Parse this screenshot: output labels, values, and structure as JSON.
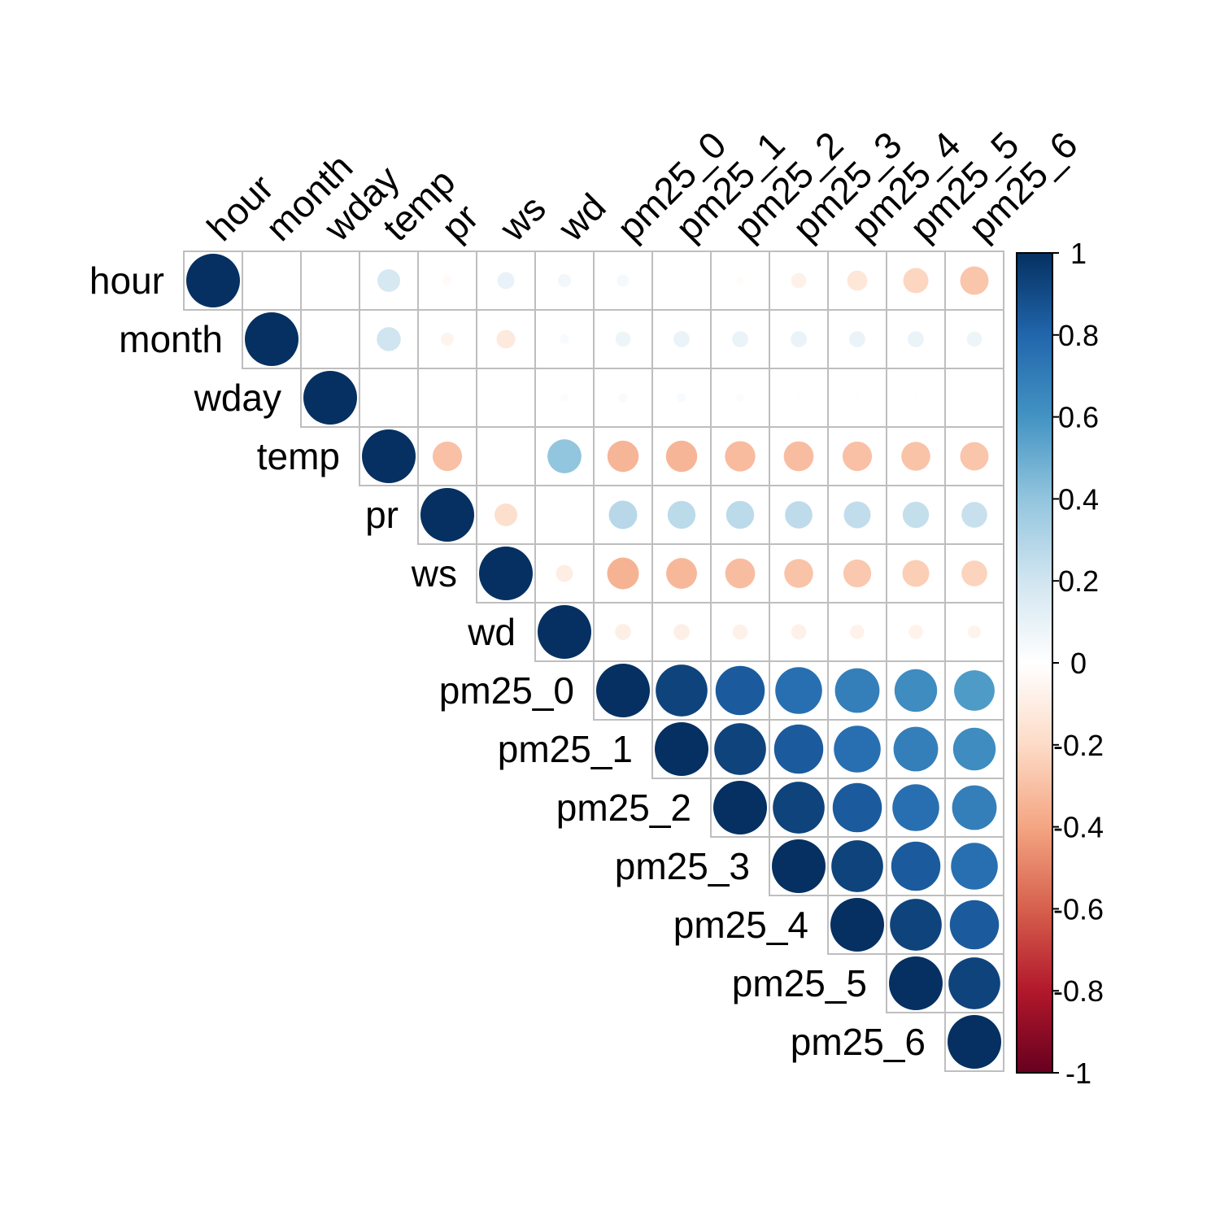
{
  "chart_data": {
    "type": "heatmap",
    "variables": [
      "hour",
      "month",
      "wday",
      "temp",
      "pr",
      "ws",
      "wd",
      "pm25_0",
      "pm25_1",
      "pm25_2",
      "pm25_3",
      "pm25_4",
      "pm25_5",
      "pm25_6"
    ],
    "matrix_layout": "upper-triangle",
    "marker": "circle",
    "correlation": [
      [
        1,
        0,
        0,
        0.18,
        -0.03,
        0.1,
        0.06,
        0.05,
        0.01,
        -0.02,
        -0.08,
        -0.14,
        -0.22,
        -0.28
      ],
      [
        null,
        1,
        0,
        0.2,
        -0.06,
        -0.12,
        0.03,
        0.08,
        0.09,
        0.09,
        0.09,
        0.09,
        0.09,
        0.08
      ],
      [
        null,
        null,
        1,
        0,
        0,
        0,
        -0.02,
        0.03,
        0.03,
        0.02,
        0.01,
        0.01,
        0.01,
        0
      ],
      [
        null,
        null,
        null,
        1,
        -0.3,
        0,
        0.4,
        -0.34,
        -0.34,
        -0.32,
        -0.31,
        -0.3,
        -0.29,
        -0.28
      ],
      [
        null,
        null,
        null,
        null,
        1,
        -0.18,
        0,
        0.28,
        0.27,
        0.27,
        0.26,
        0.25,
        0.24,
        0.23
      ],
      [
        null,
        null,
        null,
        null,
        null,
        1,
        -0.1,
        -0.35,
        -0.33,
        -0.31,
        -0.29,
        -0.27,
        -0.25,
        -0.23
      ],
      [
        null,
        null,
        null,
        null,
        null,
        null,
        1,
        -0.09,
        -0.09,
        -0.08,
        -0.08,
        -0.07,
        -0.07,
        -0.06
      ],
      [
        null,
        null,
        null,
        null,
        null,
        null,
        null,
        1,
        0.93,
        0.84,
        0.76,
        0.69,
        0.63,
        0.57
      ],
      [
        null,
        null,
        null,
        null,
        null,
        null,
        null,
        null,
        1,
        0.93,
        0.84,
        0.76,
        0.69,
        0.63
      ],
      [
        null,
        null,
        null,
        null,
        null,
        null,
        null,
        null,
        null,
        1,
        0.93,
        0.84,
        0.76,
        0.69
      ],
      [
        null,
        null,
        null,
        null,
        null,
        null,
        null,
        null,
        null,
        null,
        1,
        0.93,
        0.84,
        0.76
      ],
      [
        null,
        null,
        null,
        null,
        null,
        null,
        null,
        null,
        null,
        null,
        null,
        1,
        0.93,
        0.84
      ],
      [
        null,
        null,
        null,
        null,
        null,
        null,
        null,
        null,
        null,
        null,
        null,
        null,
        1,
        0.93
      ],
      [
        null,
        null,
        null,
        null,
        null,
        null,
        null,
        null,
        null,
        null,
        null,
        null,
        null,
        1
      ]
    ],
    "color_scale": {
      "range": [
        -1,
        1
      ],
      "ticks": [
        "1",
        "0.8",
        "0.6",
        "0.4",
        "0.2",
        "0",
        "-0.2",
        "-0.4",
        "-0.6",
        "-0.8",
        "-1"
      ],
      "tick_values": [
        1,
        0.8,
        0.6,
        0.4,
        0.2,
        0,
        -0.2,
        -0.4,
        -0.6,
        -0.8,
        -1
      ],
      "stops": [
        "#67001F",
        "#B2182B",
        "#D6604D",
        "#F4A582",
        "#FDDBC7",
        "#FFFFFF",
        "#D1E5F0",
        "#92C5DE",
        "#4393C3",
        "#2166AC",
        "#053061"
      ]
    },
    "legend_placement": "right",
    "grid": true
  }
}
